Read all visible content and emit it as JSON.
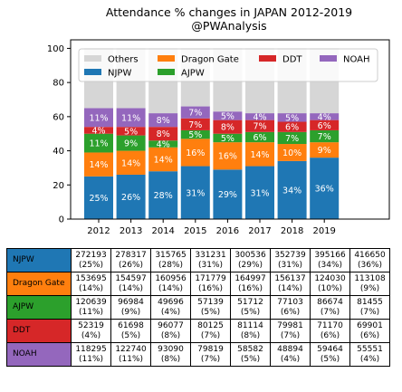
{
  "chart_data": {
    "type": "bar",
    "stacked": true,
    "title": "Attendance % changes in JAPAN 2012-2019\n@PWAnalysis",
    "categories": [
      "2012",
      "2013",
      "2014",
      "2015",
      "2016",
      "2017",
      "2018",
      "2019"
    ],
    "ylim": [
      0,
      100
    ],
    "yticks": [
      0,
      20,
      40,
      60,
      80,
      100
    ],
    "grid": false,
    "legend_position": "top",
    "legend_order": [
      "Others",
      "Dragon Gate",
      "DDT",
      "NOAH",
      "NJPW",
      "AJPW"
    ],
    "series": [
      {
        "name": "NJPW",
        "color": "#1f77b4",
        "values": [
          25,
          26,
          28,
          31,
          29,
          31,
          34,
          36
        ],
        "labels": [
          "25%",
          "26%",
          "28%",
          "31%",
          "29%",
          "31%",
          "34%",
          "36%"
        ],
        "raw": [
          "272193",
          "278317",
          "315765",
          "331231",
          "300536",
          "352739",
          "395166",
          "416650"
        ]
      },
      {
        "name": "Dragon Gate",
        "color": "#ff7f0e",
        "values": [
          14,
          14,
          14,
          16,
          16,
          14,
          10,
          9
        ],
        "labels": [
          "14%",
          "14%",
          "14%",
          "16%",
          "16%",
          "14%",
          "10%",
          "9%"
        ],
        "raw": [
          "153695",
          "154597",
          "160956",
          "171779",
          "164997",
          "156137",
          "124030",
          "113108"
        ]
      },
      {
        "name": "AJPW",
        "color": "#2ca02c",
        "values": [
          11,
          9,
          4,
          5,
          5,
          6,
          7,
          7
        ],
        "labels": [
          "11%",
          "9%",
          "4%",
          "5%",
          "5%",
          "6%",
          "7%",
          "7%"
        ],
        "raw": [
          "120639",
          "96984",
          "49696",
          "57139",
          "51712",
          "77103",
          "86674",
          "81455"
        ]
      },
      {
        "name": "DDT",
        "color": "#d62728",
        "values": [
          4,
          5,
          8,
          7,
          8,
          7,
          6,
          6
        ],
        "labels": [
          "4%",
          "5%",
          "8%",
          "7%",
          "8%",
          "7%",
          "6%",
          "6%"
        ],
        "raw": [
          "52319",
          "61698",
          "96077",
          "80125",
          "81114",
          "79981",
          "71170",
          "69901"
        ]
      },
      {
        "name": "NOAH",
        "color": "#9467bd",
        "values": [
          11,
          11,
          8,
          7,
          5,
          4,
          5,
          4
        ],
        "labels": [
          "11%",
          "11%",
          "8%",
          "7%",
          "5%",
          "4%",
          "5%",
          "4%"
        ],
        "raw": [
          "118295",
          "122740",
          "93090",
          "79819",
          "58582",
          "48894",
          "59464",
          "55551"
        ]
      },
      {
        "name": "Others",
        "color": "#d6d6d6",
        "values": [
          35,
          35,
          38,
          34,
          37,
          38,
          38,
          38
        ],
        "labels": [],
        "raw": []
      }
    ],
    "table": {
      "rows": [
        "NJPW",
        "Dragon Gate",
        "AJPW",
        "DDT",
        "NOAH"
      ],
      "percent": [
        [
          "(25%)",
          "(26%)",
          "(28%)",
          "(31%)",
          "(29%)",
          "(31%)",
          "(34%)",
          "(36%)"
        ],
        [
          "(14%)",
          "(14%)",
          "(14%)",
          "(16%)",
          "(16%)",
          "(14%)",
          "(10%)",
          "(9%)"
        ],
        [
          "(11%)",
          "(9%)",
          "(4%)",
          "(5%)",
          "(5%)",
          "(6%)",
          "(7%)",
          "(7%)"
        ],
        [
          "(4%)",
          "(5%)",
          "(8%)",
          "(7%)",
          "(8%)",
          "(7%)",
          "(6%)",
          "(6%)"
        ],
        [
          "(11%)",
          "(11%)",
          "(8%)",
          "(7%)",
          "(5%)",
          "(4%)",
          "(5%)",
          "(4%)"
        ]
      ]
    }
  }
}
